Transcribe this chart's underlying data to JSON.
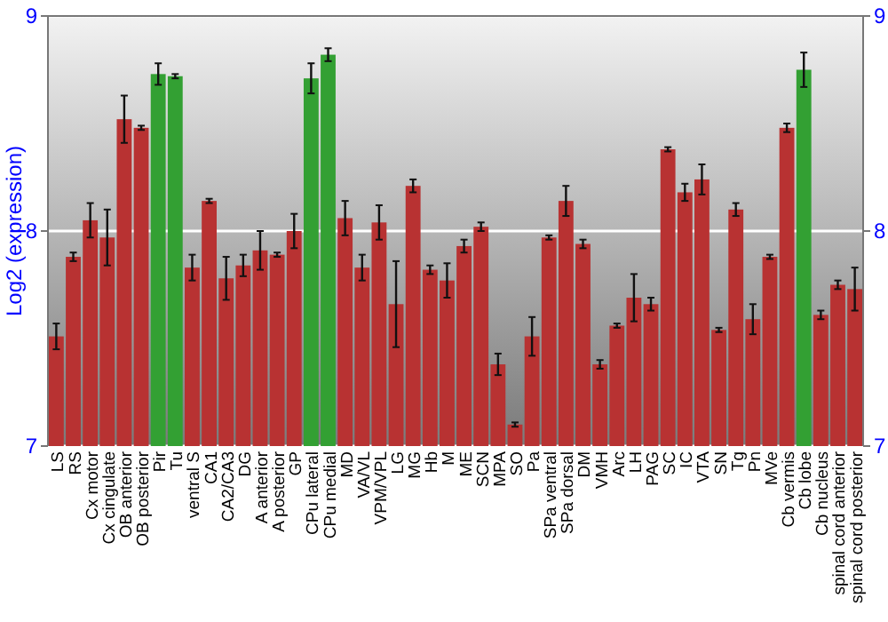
{
  "chart_data": {
    "type": "bar",
    "ylabel": "Log2 (expression)",
    "categories": [
      "LS",
      "RS",
      "Cx motor",
      "Cx cingulate",
      "OB anterior",
      "OB posterior",
      "Pir",
      "Tu",
      "ventral S",
      "CA1",
      "CA2/CA3",
      "DG",
      "A anterior",
      "A posterior",
      "GP",
      "CPu lateral",
      "CPu medial",
      "MD",
      "VA/VL",
      "VPM/VPL",
      "LG",
      "MG",
      "Hb",
      "M",
      "ME",
      "SCN",
      "MPA",
      "SO",
      "Pa",
      "SPa ventral",
      "SPa dorsal",
      "DM",
      "VMH",
      "Arc",
      "LH",
      "PAG",
      "SC",
      "IC",
      "VTA",
      "SN",
      "Tg",
      "Pn",
      "MVe",
      "Cb vermis",
      "Cb lobe",
      "Cb nucleus",
      "spinal cord anterior",
      "spinal cord posterior"
    ],
    "values": [
      7.51,
      7.88,
      8.05,
      7.97,
      8.52,
      8.48,
      8.73,
      8.72,
      7.83,
      8.14,
      7.78,
      7.84,
      7.91,
      7.89,
      8.0,
      8.71,
      8.82,
      8.06,
      7.83,
      8.04,
      7.66,
      8.21,
      7.82,
      7.77,
      7.93,
      8.02,
      7.38,
      7.1,
      7.51,
      7.97,
      8.14,
      7.94,
      7.38,
      7.56,
      7.69,
      7.66,
      8.38,
      8.18,
      8.24,
      7.54,
      8.1,
      7.59,
      7.88,
      8.48,
      8.75,
      7.61,
      7.75,
      7.73
    ],
    "errors": [
      0.06,
      0.02,
      0.08,
      0.13,
      0.11,
      0.01,
      0.05,
      0.01,
      0.06,
      0.01,
      0.1,
      0.05,
      0.09,
      0.01,
      0.08,
      0.07,
      0.03,
      0.08,
      0.06,
      0.08,
      0.2,
      0.03,
      0.02,
      0.08,
      0.03,
      0.02,
      0.05,
      0.01,
      0.09,
      0.01,
      0.07,
      0.02,
      0.02,
      0.01,
      0.11,
      0.03,
      0.01,
      0.04,
      0.07,
      0.01,
      0.03,
      0.07,
      0.01,
      0.02,
      0.08,
      0.02,
      0.02,
      0.1
    ],
    "colors": [
      "#b83232",
      "#b83232",
      "#b83232",
      "#b83232",
      "#b83232",
      "#b83232",
      "#33a033",
      "#33a033",
      "#b83232",
      "#b83232",
      "#b83232",
      "#b83232",
      "#b83232",
      "#b83232",
      "#b83232",
      "#33a033",
      "#33a033",
      "#b83232",
      "#b83232",
      "#b83232",
      "#b83232",
      "#b83232",
      "#b83232",
      "#b83232",
      "#b83232",
      "#b83232",
      "#b83232",
      "#b83232",
      "#b83232",
      "#b83232",
      "#b83232",
      "#b83232",
      "#b83232",
      "#b83232",
      "#b83232",
      "#b83232",
      "#b83232",
      "#b83232",
      "#b83232",
      "#b83232",
      "#b83232",
      "#b83232",
      "#b83232",
      "#b83232",
      "#33a033",
      "#b83232",
      "#b83232",
      "#b83232"
    ],
    "ylim": [
      7,
      9
    ],
    "yticks": [
      7,
      8,
      9
    ],
    "y2lim": [
      7,
      9
    ],
    "y2ticks": [
      7,
      8,
      9
    ],
    "grid": "y"
  }
}
